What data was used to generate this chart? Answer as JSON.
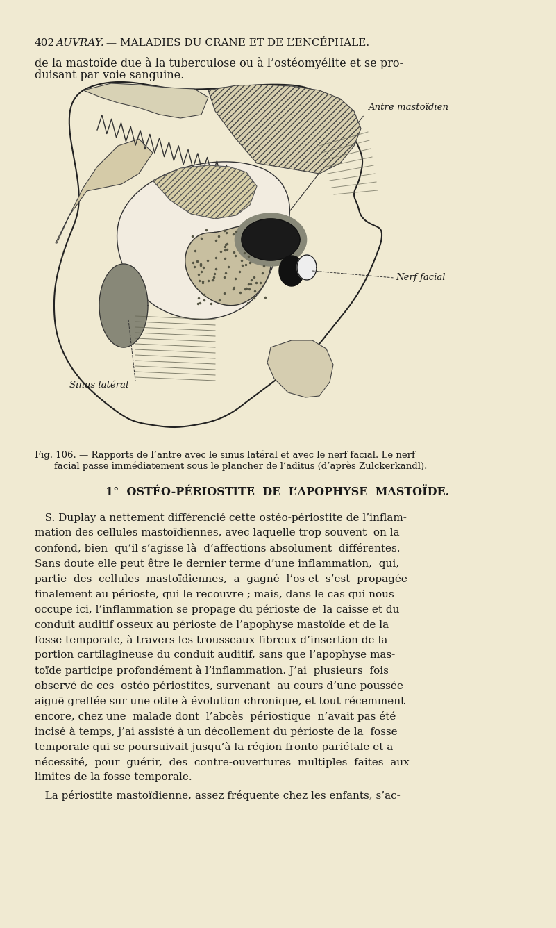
{
  "bg_color": "#f0ead2",
  "page_width": 8.01,
  "page_height": 13.36,
  "text_color": "#1a1a1a",
  "header_num": "402",
  "header_author": "AUVRAY.",
  "header_rest": " — MALADIES DU CRANE ET DE L’ENCÉPHALE.",
  "intro_line1": "de la mastoïde due à la tuberculose ou à l’ostéomyélite et se pro-",
  "intro_line2": "duisant par voie sanguine.",
  "label_antre": "Antre mastoïdien",
  "label_nerf": "Nerf facial",
  "label_sinus": "Sinus latéral",
  "fig_caption_line1": "Fig. 106. — Rapports de l’antre avec le sinus latéral et avec le nerf facial. Le nerf",
  "fig_caption_line2": "facial passe immédiatement sous le plancher de l’aditus (d’après Zulckerkandl).",
  "section_title": "1°  OSTÉO-PÉRIOSTITE  DE  L’APOPHYSE  MASTOÏDE.",
  "para1_lines": [
    "   S. Duplay a nettement différencié cette ostéo-périostite de l’inflam-",
    "mation des cellules mastoïdiennes, avec laquelle trop souvent  on la",
    "confond, bien  qu’il s’agisse là  d’affections absolument  différentes.",
    "Sans doute elle peut être le dernier terme d’une inflammation,  qui,",
    "partie  des  cellules  mastoïdiennes,  a  gagné  l’os et  s’est  propagée",
    "finalement au périoste, qui le recouvre ; mais, dans le cas qui nous",
    "occupe ici, l’inflammation se propage du périoste de  la caisse et du",
    "conduit auditif osseux au périoste de l’apophyse mastoïde et de la",
    "fosse temporale, à travers les trousseaux fibreux d’insertion de la",
    "portion cartilagineuse du conduit auditif, sans que l’apophyse mas-",
    "toïde participe profondément à l’inflammation. J’ai  plusieurs  fois",
    "observé de ces  ostéo-périostites, survenant  au cours d’une poussée",
    "aiguë greffée sur une otite à évolution chronique, et tout récemment",
    "encore, chez une  malade dont  l’abcès  périostique  n’avait pas été",
    "incisé à temps, j’ai assisté à un décollement du périoste de la  fosse",
    "temporale qui se poursuivait jusqu’à la région fronto-pariétale et a",
    "nécessité,  pour  guérir,  des  contre-ouvertures  multiples  faites  aux",
    "limites de la fosse temporale."
  ],
  "para2": "   La périostite mastoïdienne, assez fréquente chez les enfants, s’ac-"
}
